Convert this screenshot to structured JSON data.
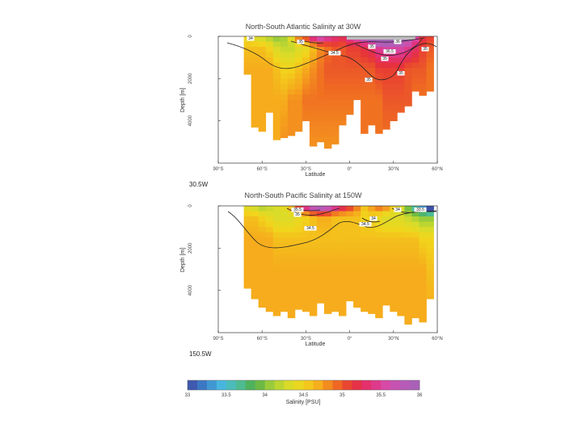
{
  "chart_data": [
    {
      "type": "heatmap",
      "title": "North-South Atlantic Salinity at 30W",
      "xlabel": "Latitude",
      "ylabel": "Depth [m]",
      "xticks": [
        "90°S",
        "60°S",
        "30°S",
        "0°",
        "30°N",
        "60°N"
      ],
      "yticks": [
        "0",
        "2000",
        "4000"
      ],
      "xlim": [
        -90,
        60
      ],
      "ylim": [
        0,
        6000
      ],
      "section_label": "30.5W",
      "contour_labels": [
        "34",
        "35",
        "34.5",
        "35",
        "36",
        "35",
        "36.5",
        "35",
        "35",
        "35"
      ],
      "columns": [
        {
          "lat": -80,
          "bottom": 0
        },
        {
          "lat": -75,
          "bottom": 0
        },
        {
          "lat": -70,
          "bottom": 1800,
          "vals": [
            34.4,
            34.6,
            34.7,
            34.7,
            34.7
          ]
        },
        {
          "lat": -65,
          "bottom": 4300,
          "vals": [
            34.3,
            34.6,
            34.7,
            34.7,
            34.7
          ]
        },
        {
          "lat": -60,
          "bottom": 4500,
          "vals": [
            34.2,
            34.6,
            34.7,
            34.7,
            34.7
          ]
        },
        {
          "lat": -55,
          "bottom": 3600,
          "vals": [
            34.1,
            34.5,
            34.7,
            34.7,
            34.7
          ]
        },
        {
          "lat": -50,
          "bottom": 4900,
          "vals": [
            34.0,
            34.3,
            34.6,
            34.7,
            34.7
          ]
        },
        {
          "lat": -45,
          "bottom": 4800,
          "vals": [
            34.1,
            34.2,
            34.5,
            34.7,
            34.8
          ]
        },
        {
          "lat": -40,
          "bottom": 4700,
          "vals": [
            34.4,
            34.2,
            34.5,
            34.8,
            34.8
          ]
        },
        {
          "lat": -35,
          "bottom": 4500,
          "vals": [
            35.0,
            34.3,
            34.6,
            34.8,
            34.8
          ]
        },
        {
          "lat": -30,
          "bottom": 4000,
          "vals": [
            35.2,
            34.4,
            34.7,
            34.9,
            34.8
          ]
        },
        {
          "lat": -25,
          "bottom": 5200,
          "vals": [
            35.6,
            34.6,
            34.8,
            34.9,
            34.8
          ]
        },
        {
          "lat": -20,
          "bottom": 5000,
          "vals": [
            35.8,
            34.8,
            34.9,
            34.9,
            34.8
          ]
        },
        {
          "lat": -15,
          "bottom": 5300,
          "vals": [
            35.6,
            34.9,
            35.0,
            34.9,
            34.8
          ]
        },
        {
          "lat": -10,
          "bottom": 5100,
          "vals": [
            35.4,
            35.0,
            35.0,
            34.9,
            34.8
          ]
        },
        {
          "lat": -5,
          "bottom": 4200,
          "vals": [
            35.3,
            35.0,
            35.0,
            34.9,
            34.8
          ]
        },
        {
          "lat": 0,
          "bottom": 3700,
          "vals": [
            35.5,
            35.1,
            35.0,
            34.9,
            34.8
          ]
        },
        {
          "lat": 5,
          "bottom": 3000,
          "vals": [
            35.7,
            35.1,
            35.0,
            34.9,
            34.9
          ]
        },
        {
          "lat": 10,
          "bottom": 4600,
          "vals": [
            35.9,
            35.2,
            35.0,
            34.9,
            34.9
          ]
        },
        {
          "lat": 15,
          "bottom": 4200,
          "vals": [
            36.3,
            35.3,
            35.0,
            34.9,
            34.9
          ]
        },
        {
          "lat": 20,
          "bottom": 4600,
          "vals": [
            36.7,
            35.5,
            35.1,
            34.9,
            34.9
          ]
        },
        {
          "lat": 25,
          "bottom": 4400,
          "vals": [
            36.8,
            35.6,
            35.1,
            35.0,
            34.9
          ]
        },
        {
          "lat": 30,
          "bottom": 4000,
          "vals": [
            36.6,
            35.6,
            35.1,
            35.0,
            34.9
          ]
        },
        {
          "lat": 35,
          "bottom": 3600,
          "vals": [
            36.3,
            35.6,
            35.1,
            35.0,
            34.9
          ]
        },
        {
          "lat": 40,
          "bottom": 3300,
          "vals": [
            36.0,
            35.5,
            35.0,
            35.0,
            34.9
          ]
        },
        {
          "lat": 45,
          "bottom": 2600,
          "vals": [
            35.6,
            35.3,
            35.0,
            34.9,
            34.9
          ]
        },
        {
          "lat": 50,
          "bottom": 2800,
          "vals": [
            35.2,
            35.1,
            35.0,
            34.9,
            34.9
          ]
        },
        {
          "lat": 55,
          "bottom": 2600,
          "vals": [
            35.1,
            35.0,
            34.9,
            34.9,
            34.9
          ]
        }
      ]
    },
    {
      "type": "heatmap",
      "title": "North-South Pacific Salinity at 150W",
      "xlabel": "Latitude",
      "ylabel": "Depth [m]",
      "xticks": [
        "90°S",
        "60°S",
        "30°S",
        "0°",
        "30°N",
        "60°N"
      ],
      "yticks": [
        "0",
        "2000",
        "4000"
      ],
      "xlim": [
        -90,
        60
      ],
      "ylim": [
        0,
        6000
      ],
      "section_label": "150.5W",
      "contour_labels": [
        "35.5",
        "35",
        "34.5",
        "34",
        "34.5",
        "34",
        "33.5"
      ],
      "columns": [
        {
          "lat": -80,
          "bottom": 0
        },
        {
          "lat": -75,
          "bottom": 200
        },
        {
          "lat": -70,
          "bottom": 3900,
          "vals": [
            34.3,
            34.6,
            34.7,
            34.7,
            34.7
          ]
        },
        {
          "lat": -65,
          "bottom": 4400,
          "vals": [
            34.2,
            34.6,
            34.7,
            34.7,
            34.7
          ]
        },
        {
          "lat": -60,
          "bottom": 4800,
          "vals": [
            34.1,
            34.5,
            34.7,
            34.7,
            34.7
          ]
        },
        {
          "lat": -55,
          "bottom": 5000,
          "vals": [
            34.2,
            34.4,
            34.7,
            34.7,
            34.7
          ]
        },
        {
          "lat": -50,
          "bottom": 5200,
          "vals": [
            34.3,
            34.3,
            34.6,
            34.7,
            34.7
          ]
        },
        {
          "lat": -45,
          "bottom": 5000,
          "vals": [
            34.4,
            34.3,
            34.6,
            34.7,
            34.7
          ]
        },
        {
          "lat": -40,
          "bottom": 5300,
          "vals": [
            34.7,
            34.3,
            34.6,
            34.7,
            34.7
          ]
        },
        {
          "lat": -35,
          "bottom": 4900,
          "vals": [
            35.3,
            34.4,
            34.6,
            34.7,
            34.7
          ]
        },
        {
          "lat": -30,
          "bottom": 5000,
          "vals": [
            35.7,
            34.5,
            34.6,
            34.7,
            34.7
          ]
        },
        {
          "lat": -25,
          "bottom": 5200,
          "vals": [
            36.1,
            34.6,
            34.6,
            34.7,
            34.7
          ]
        },
        {
          "lat": -20,
          "bottom": 4600,
          "vals": [
            36.2,
            34.7,
            34.6,
            34.7,
            34.7
          ]
        },
        {
          "lat": -15,
          "bottom": 5100,
          "vals": [
            36.0,
            34.7,
            34.6,
            34.7,
            34.7
          ]
        },
        {
          "lat": -10,
          "bottom": 5000,
          "vals": [
            35.7,
            34.6,
            34.6,
            34.7,
            34.7
          ]
        },
        {
          "lat": -5,
          "bottom": 5200,
          "vals": [
            35.4,
            34.6,
            34.6,
            34.7,
            34.7
          ]
        },
        {
          "lat": 0,
          "bottom": 4500,
          "vals": [
            35.2,
            34.6,
            34.6,
            34.7,
            34.7
          ]
        },
        {
          "lat": 5,
          "bottom": 4800,
          "vals": [
            34.9,
            34.6,
            34.6,
            34.7,
            34.7
          ]
        },
        {
          "lat": 10,
          "bottom": 5000,
          "vals": [
            34.6,
            34.5,
            34.6,
            34.7,
            34.7
          ]
        },
        {
          "lat": 15,
          "bottom": 5100,
          "vals": [
            34.8,
            34.5,
            34.6,
            34.7,
            34.7
          ]
        },
        {
          "lat": 20,
          "bottom": 5300,
          "vals": [
            35.0,
            34.4,
            34.6,
            34.7,
            34.7
          ]
        },
        {
          "lat": 25,
          "bottom": 4700,
          "vals": [
            34.9,
            34.3,
            34.6,
            34.7,
            34.7
          ]
        },
        {
          "lat": 30,
          "bottom": 5000,
          "vals": [
            34.6,
            34.3,
            34.6,
            34.7,
            34.7
          ]
        },
        {
          "lat": 35,
          "bottom": 5200,
          "vals": [
            34.3,
            34.3,
            34.6,
            34.7,
            34.7
          ]
        },
        {
          "lat": 40,
          "bottom": 5600,
          "vals": [
            33.9,
            34.2,
            34.6,
            34.7,
            34.7
          ]
        },
        {
          "lat": 45,
          "bottom": 5300,
          "vals": [
            33.5,
            34.1,
            34.6,
            34.7,
            34.7
          ]
        },
        {
          "lat": 50,
          "bottom": 5500,
          "vals": [
            33.1,
            34.0,
            34.5,
            34.7,
            34.7
          ]
        },
        {
          "lat": 55,
          "bottom": 4400,
          "vals": [
            32.7,
            34.0,
            34.5,
            34.6,
            34.7
          ]
        }
      ]
    }
  ],
  "colorbar": {
    "label": "Salinity [PSU]",
    "min": 33,
    "max": 36,
    "ticks": [
      "33",
      "33.5",
      "34",
      "34.5",
      "35",
      "35.5",
      "36"
    ],
    "colors": [
      "#3f4aa3",
      "#3a7fc7",
      "#47b6e2",
      "#4fbfa2",
      "#4fae4a",
      "#9ccc3a",
      "#d7dc2a",
      "#f2d51c",
      "#f6a91c",
      "#ef6a22",
      "#e63238",
      "#e3307a",
      "#d64aa8",
      "#b95ab8",
      "#a463b8"
    ]
  }
}
